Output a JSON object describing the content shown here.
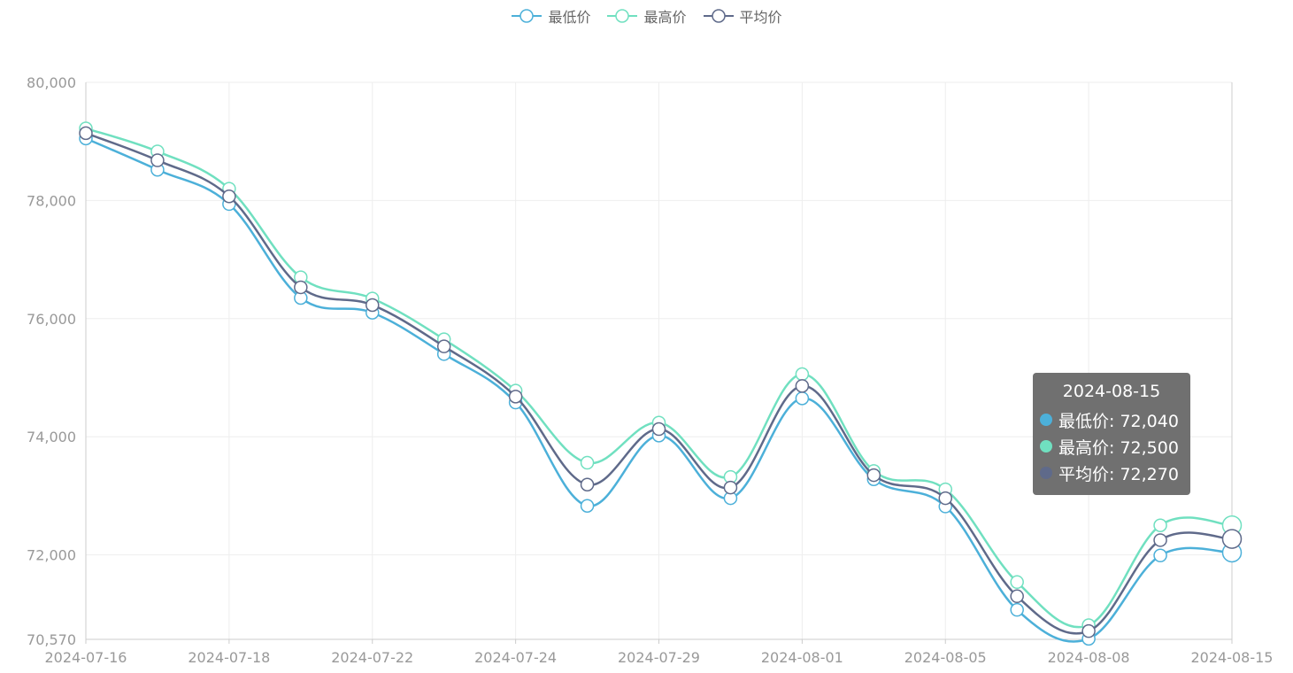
{
  "chart_data": {
    "type": "line",
    "title": "",
    "xlabel": "",
    "ylabel": "",
    "ylim": [
      70570,
      80000
    ],
    "y_ticks": [
      "70,570",
      "72,000",
      "74,000",
      "76,000",
      "78,000",
      "80,000"
    ],
    "y_tick_values": [
      70570,
      72000,
      74000,
      76000,
      78000,
      80000
    ],
    "x": [
      "2024-07-16",
      "2024-07-17",
      "2024-07-18",
      "2024-07-19",
      "2024-07-22",
      "2024-07-23",
      "2024-07-24",
      "2024-07-25",
      "2024-07-29",
      "2024-07-30",
      "2024-08-01",
      "2024-08-02",
      "2024-08-05",
      "2024-08-06",
      "2024-08-08",
      "2024-08-09",
      "2024-08-15"
    ],
    "x_tick_labels": [
      "2024-07-16",
      "2024-07-18",
      "2024-07-22",
      "2024-07-24",
      "2024-07-29",
      "2024-08-01",
      "2024-08-05",
      "2024-08-08",
      "2024-08-15"
    ],
    "grid": true,
    "legend_position": "top-center",
    "series": [
      {
        "name": "最低价",
        "color": "#4cb0d9",
        "values": [
          79050,
          78520,
          77940,
          76350,
          76100,
          75400,
          74580,
          72830,
          74020,
          72960,
          74650,
          73280,
          72820,
          71070,
          70580,
          71990,
          72040
        ]
      },
      {
        "name": "最高价",
        "color": "#70e0c0",
        "values": [
          79220,
          78830,
          78200,
          76700,
          76340,
          75650,
          74780,
          73560,
          74240,
          73320,
          75060,
          73420,
          73110,
          71540,
          70810,
          72500,
          72500
        ]
      },
      {
        "name": "平均价",
        "color": "#5f6a8a",
        "values": [
          79140,
          78680,
          78070,
          76530,
          76230,
          75530,
          74680,
          73190,
          74130,
          73140,
          74860,
          73350,
          72960,
          71300,
          70710,
          72250,
          72270
        ]
      }
    ]
  },
  "legend": {
    "items": [
      {
        "label": "最低价",
        "color": "#4cb0d9"
      },
      {
        "label": "最高价",
        "color": "#70e0c0"
      },
      {
        "label": "平均价",
        "color": "#5f6a8a"
      }
    ]
  },
  "tooltip": {
    "title": "2024-08-15",
    "rows": [
      {
        "text": "最低价: 72,040",
        "color": "#4cb0d9"
      },
      {
        "text": "最高价: 72,500",
        "color": "#70e0c0"
      },
      {
        "text": "平均价: 72,270",
        "color": "#5f6a8a"
      }
    ]
  }
}
